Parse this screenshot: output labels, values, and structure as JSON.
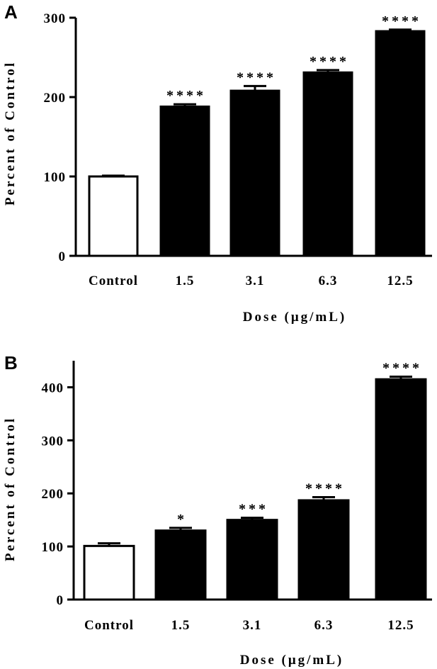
{
  "chart_data": [
    {
      "panel": "A",
      "type": "bar",
      "categories": [
        "Control",
        "1.5",
        "3.1",
        "6.3",
        "12.5"
      ],
      "values": [
        100,
        188,
        208,
        231,
        283
      ],
      "errors": [
        1,
        3,
        6,
        3,
        2
      ],
      "significance": [
        "",
        "****",
        "****",
        "****",
        "****"
      ],
      "xlabel": "Dose (μg/mL)",
      "ylabel": "Percent of Control",
      "ylim": [
        0,
        300
      ],
      "yticks": [
        0,
        100,
        200,
        300
      ],
      "colors": {
        "control_fill": "#ffffff",
        "treated_fill": "#000000",
        "stroke": "#000000"
      }
    },
    {
      "panel": "B",
      "type": "bar",
      "categories": [
        "Control",
        "1.5",
        "3.1",
        "6.3",
        "12.5"
      ],
      "values": [
        101,
        130,
        150,
        187,
        415
      ],
      "errors": [
        5,
        5,
        4,
        6,
        5
      ],
      "significance": [
        "",
        "*",
        "***",
        "****",
        "****"
      ],
      "xlabel": "Dose (μg/mL)",
      "ylabel": "Percent of Control",
      "ylim": [
        0,
        450
      ],
      "yticks": [
        0,
        100,
        200,
        300,
        400
      ],
      "colors": {
        "control_fill": "#ffffff",
        "treated_fill": "#000000",
        "stroke": "#000000"
      }
    }
  ]
}
